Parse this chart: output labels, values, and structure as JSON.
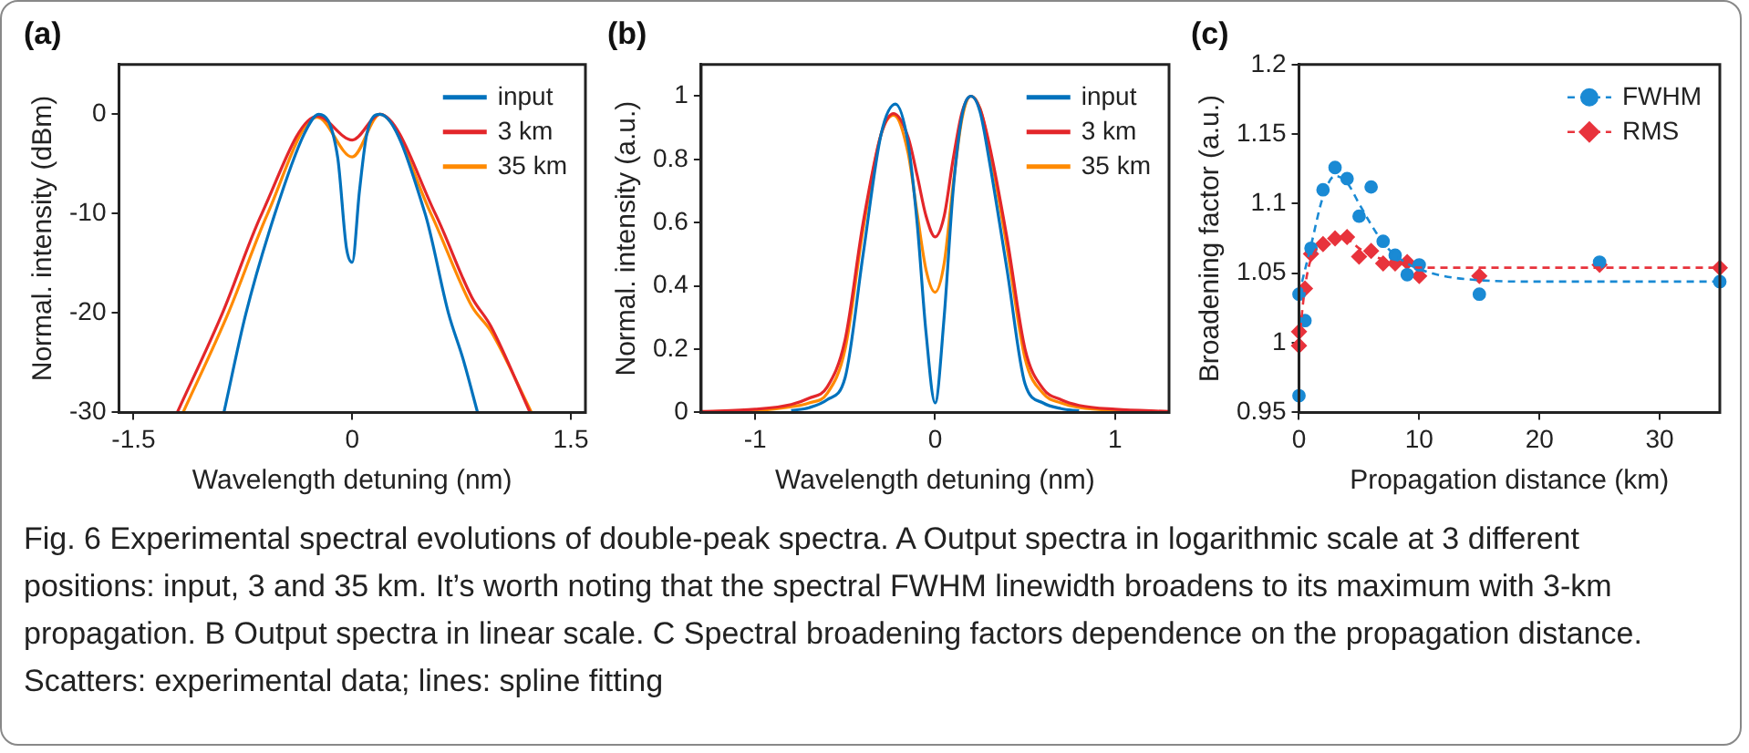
{
  "chart_data": [
    {
      "type": "line",
      "title": "(a)",
      "xlabel": "Wavelength detuning (nm)",
      "ylabel": "Normal. intensity (dBm)",
      "xlim": [
        -1.6,
        1.6
      ],
      "xticks": [
        -1.5,
        0,
        1.5
      ],
      "ylim": [
        -30,
        5
      ],
      "yticks": [
        -30,
        -20,
        -10,
        0
      ],
      "grid": false,
      "legend": "top right",
      "annotations": [
        "Fig. 6 Experimental spectral evolutions of double-peak spectra. A Output spectra in logarithmic scale at 3 different positions: input, 3 and 35 km. It’s worth noting that the spectral FWHM linewidth broadens to its maximum with 3-km propagation. B Output spectra in linear scale. C Spectral broadening factors dependence on the propagation distance. Scatters: experimental data; lines: spline fitting"
      ],
      "series": [
        {
          "name": "input",
          "color": "#0072bd",
          "x": [
            -0.88,
            -0.73,
            -0.53,
            -0.33,
            -0.23,
            -0.1,
            -0.04,
            0,
            0.05,
            0.1,
            0.19,
            0.5,
            0.66,
            0.76,
            0.86
          ],
          "values": [
            -30,
            -20.1,
            -10,
            -2,
            0,
            -4.3,
            -13.4,
            -14.9,
            -7.7,
            -2,
            0,
            -10,
            -20,
            -24.6,
            -30
          ]
        },
        {
          "name": "3 km",
          "color": "#e3262a",
          "x": [
            -1.2,
            -0.89,
            -0.62,
            -0.24,
            0,
            0.19,
            0.57,
            0.82,
            0.95,
            1.22
          ],
          "values": [
            -30,
            -20,
            -10,
            -0.2,
            -2.6,
            0,
            -10,
            -18.4,
            -21.3,
            -30
          ]
        },
        {
          "name": "35 km",
          "color": "#ff8a00",
          "x": [
            -1.16,
            -0.85,
            -0.58,
            -0.24,
            0,
            0.19,
            0.54,
            0.82,
            0.95,
            1.23
          ],
          "values": [
            -30,
            -20,
            -10,
            -0.3,
            -4.3,
            0,
            -10,
            -19.3,
            -21.8,
            -30
          ]
        }
      ]
    },
    {
      "type": "line",
      "title": "(b)",
      "xlabel": "Wavelength detuning (nm)",
      "ylabel": "Normal. intensity (a.u.)",
      "xlim": [
        -1.3,
        1.3
      ],
      "xticks": [
        -1,
        0,
        1
      ],
      "ylim": [
        0,
        1.1
      ],
      "yticks": [
        0,
        0.2,
        0.4,
        0.6,
        0.8,
        1
      ],
      "grid": false,
      "legend": "top right",
      "series": [
        {
          "name": "input",
          "color": "#0072bd",
          "x": [
            -0.8,
            -0.7,
            -0.6,
            -0.5,
            -0.4,
            -0.3,
            -0.22,
            -0.15,
            -0.1,
            -0.05,
            0,
            0.05,
            0.1,
            0.15,
            0.2,
            0.25,
            0.3,
            0.4,
            0.5,
            0.6,
            0.7,
            0.8
          ],
          "values": [
            0.006,
            0.015,
            0.04,
            0.11,
            0.5,
            0.88,
            0.975,
            0.85,
            0.6,
            0.25,
            0.03,
            0.3,
            0.7,
            0.94,
            1,
            0.95,
            0.8,
            0.45,
            0.09,
            0.03,
            0.012,
            0.005
          ]
        },
        {
          "name": "3 km",
          "color": "#e3262a",
          "x": [
            -1.3,
            -1,
            -0.8,
            -0.7,
            -0.6,
            -0.5,
            -0.4,
            -0.3,
            -0.23,
            -0.15,
            -0.1,
            -0.05,
            0,
            0.05,
            0.1,
            0.15,
            0.2,
            0.25,
            0.3,
            0.4,
            0.5,
            0.6,
            0.7,
            0.8,
            1,
            1.3
          ],
          "values": [
            0.003,
            0.01,
            0.025,
            0.045,
            0.08,
            0.23,
            0.6,
            0.88,
            0.945,
            0.87,
            0.75,
            0.62,
            0.555,
            0.62,
            0.8,
            0.95,
            1,
            0.96,
            0.85,
            0.55,
            0.2,
            0.075,
            0.04,
            0.022,
            0.01,
            0.003
          ]
        },
        {
          "name": "35 km",
          "color": "#ff8a00",
          "x": [
            -1.3,
            -1,
            -0.8,
            -0.7,
            -0.6,
            -0.5,
            -0.4,
            -0.3,
            -0.23,
            -0.15,
            -0.1,
            -0.05,
            0,
            0.05,
            0.1,
            0.15,
            0.2,
            0.25,
            0.3,
            0.4,
            0.5,
            0.6,
            0.7,
            0.8,
            1,
            1.3
          ],
          "values": [
            0.002,
            0.006,
            0.018,
            0.03,
            0.06,
            0.2,
            0.58,
            0.88,
            0.94,
            0.82,
            0.63,
            0.45,
            0.38,
            0.47,
            0.72,
            0.93,
            1,
            0.96,
            0.84,
            0.52,
            0.17,
            0.06,
            0.03,
            0.016,
            0.006,
            0.002
          ]
        }
      ]
    },
    {
      "type": "scatter",
      "title": "(c)",
      "xlabel": "Propagation distance (km)",
      "ylabel": "Broadening factor (a.u.)",
      "xlim": [
        0,
        35
      ],
      "xticks": [
        0,
        10,
        20,
        30
      ],
      "ylim": [
        0.95,
        1.2
      ],
      "yticks": [
        0.95,
        1,
        1.05,
        1.1,
        1.15,
        1.2
      ],
      "grid": false,
      "legend": "top right",
      "line_style": "dashed",
      "series": [
        {
          "type": "line",
          "color": "#1a8ad4",
          "line_style": "dashed",
          "x": [
            0,
            1,
            2,
            3,
            4,
            5,
            6,
            7,
            8,
            10,
            15,
            20,
            35
          ],
          "values": [
            1.035,
            1.07,
            1.105,
            1.12,
            1.115,
            1.1,
            1.085,
            1.072,
            1.063,
            1.053,
            1.045,
            1.044,
            1.044
          ]
        },
        {
          "type": "line",
          "color": "#e8333c",
          "line_style": "dashed",
          "x": [
            0,
            0.5,
            1,
            3,
            4,
            5,
            6,
            8,
            10,
            15,
            35
          ],
          "values": [
            1,
            1.04,
            1.06,
            1.074,
            1.074,
            1.068,
            1.063,
            1.058,
            1.054,
            1.054,
            1.054
          ]
        },
        {
          "type": "scatter",
          "name": "FWHM",
          "color": "#1a8ad4",
          "marker": "circle",
          "x": [
            0,
            0,
            0.5,
            1,
            2,
            3,
            4,
            5,
            6,
            7,
            8,
            9,
            10,
            15,
            25,
            35
          ],
          "values": [
            0.962,
            1.035,
            1.016,
            1.068,
            1.11,
            1.126,
            1.118,
            1.091,
            1.112,
            1.073,
            1.063,
            1.049,
            1.056,
            1.035,
            1.058,
            1.044
          ]
        },
        {
          "type": "scatter",
          "name": "RMS",
          "color": "#e8333c",
          "marker": "diamond",
          "x": [
            0,
            0,
            0.5,
            1,
            2,
            3,
            4,
            5,
            6,
            7,
            8,
            9,
            10,
            15,
            25,
            35
          ],
          "values": [
            1.008,
            0.998,
            1.039,
            1.064,
            1.071,
            1.075,
            1.076,
            1.062,
            1.066,
            1.057,
            1.057,
            1.058,
            1.048,
            1.048,
            1.056,
            1.054
          ]
        }
      ]
    }
  ]
}
